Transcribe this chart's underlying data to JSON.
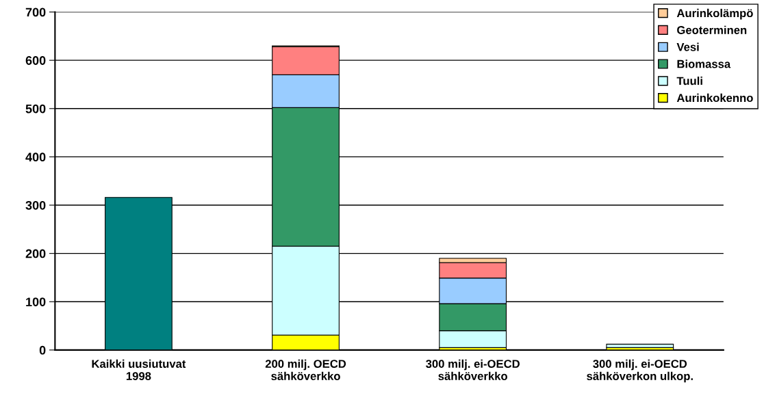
{
  "chart_data": {
    "type": "bar",
    "stacked": true,
    "categories": [
      "Kaikki uusiutuvat\n1998",
      "200 milj. OECD\nsähköverkko",
      "300 milj. ei-OECD\nsähköverkko",
      "300 milj. ei-OECD\nsähköverkon ulkop."
    ],
    "series": [
      {
        "color": "#008080",
        "values": [
          316,
          null,
          null,
          null
        ]
      },
      {
        "name": "Aurinkokenno",
        "color": "#ffff00",
        "values": [
          null,
          31,
          5,
          5
        ]
      },
      {
        "name": "Tuuli",
        "color": "#ccffff",
        "values": [
          null,
          184,
          35,
          7
        ]
      },
      {
        "name": "Biomassa",
        "color": "#339966",
        "values": [
          null,
          287,
          56,
          null
        ]
      },
      {
        "name": "Vesi",
        "color": "#99ccff",
        "values": [
          null,
          68,
          53,
          null
        ]
      },
      {
        "name": "Geoterminen",
        "color": "#ff8080",
        "values": [
          null,
          58,
          32,
          null
        ]
      },
      {
        "name": "Aurinkolämpö",
        "color": "#ffcc99",
        "values": [
          null,
          2,
          9,
          null
        ]
      }
    ],
    "ylim": [
      0,
      700
    ],
    "yticks": [
      0,
      100,
      200,
      300,
      400,
      500,
      600,
      700
    ],
    "grid": "y",
    "legend": "top right"
  }
}
